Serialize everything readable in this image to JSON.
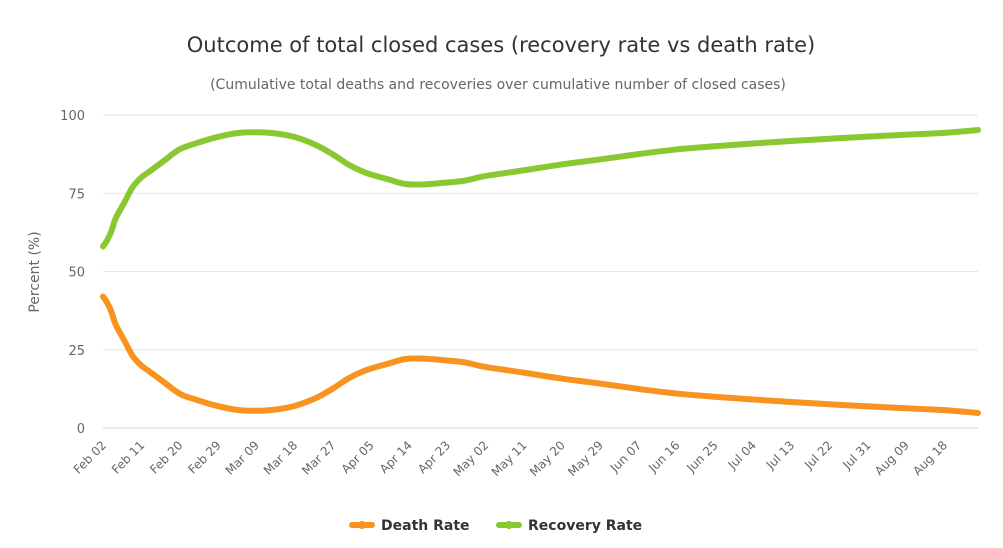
{
  "chart_data": {
    "type": "line",
    "title": "Outcome of total closed cases (recovery rate vs death rate)",
    "subtitle": "(Cumulative total deaths and recoveries over cumulative number of closed cases)",
    "xlabel": "",
    "ylabel": "Percent (%)",
    "ylim": [
      0,
      100
    ],
    "yticks": [
      "0",
      "25",
      "50",
      "75",
      "100"
    ],
    "ytick_values": [
      0,
      25,
      50,
      75,
      100
    ],
    "grid": true,
    "legend_position": "bottom-center",
    "x_unit": "days since Feb 02",
    "x_range": [
      0,
      206
    ],
    "xtick_labels": [
      "Feb 02",
      "Feb 11",
      "Feb 20",
      "Feb 29",
      "Mar 09",
      "Mar 18",
      "Mar 27",
      "Apr 05",
      "Apr 14",
      "Apr 23",
      "May 02",
      "May 11",
      "May 20",
      "May 29",
      "Jun 07",
      "Jun 16",
      "Jun 25",
      "Jul 04",
      "Jul 13",
      "Jul 22",
      "Jul 31",
      "Aug 09",
      "Aug 18"
    ],
    "xtick_days": [
      0,
      9,
      18,
      27,
      36,
      45,
      54,
      63,
      72,
      81,
      90,
      99,
      108,
      117,
      126,
      135,
      144,
      153,
      162,
      171,
      180,
      189,
      198
    ],
    "x": [
      0,
      1,
      2,
      3,
      5,
      7,
      9,
      11,
      14,
      18,
      22,
      27,
      32,
      36,
      40,
      45,
      50,
      54,
      58,
      62,
      67,
      71,
      75,
      80,
      85,
      90,
      99,
      108,
      117,
      126,
      135,
      144,
      153,
      162,
      171,
      180,
      189,
      198,
      206
    ],
    "series": [
      {
        "name": "Death Rate",
        "color": "#f7931e",
        "values": [
          42,
          40,
          37,
          33,
          28,
          23,
          20,
          18,
          15,
          11,
          9,
          7,
          5.7,
          5.5,
          5.8,
          7,
          9.5,
          12.5,
          16,
          18.5,
          20.5,
          22,
          22.2,
          21.7,
          21,
          19.5,
          17.7,
          15.8,
          14.2,
          12.5,
          11,
          10,
          9.1,
          8.3,
          7.6,
          6.9,
          6.3,
          5.7,
          4.8
        ]
      },
      {
        "name": "Recovery Rate",
        "color": "#8ac832",
        "values": [
          58,
          60,
          63,
          67,
          72,
          77,
          80,
          82,
          85,
          89,
          91,
          93,
          94.3,
          94.5,
          94.2,
          93,
          90.5,
          87.5,
          84,
          81.5,
          79.5,
          78,
          77.8,
          78.3,
          79,
          80.5,
          82.3,
          84.2,
          85.8,
          87.5,
          89,
          90,
          90.9,
          91.7,
          92.4,
          93.1,
          93.7,
          94.3,
          95.2
        ]
      }
    ]
  },
  "legend": {
    "items": [
      {
        "label": "Death Rate",
        "color": "#f7931e"
      },
      {
        "label": "Recovery Rate",
        "color": "#8ac832"
      }
    ]
  }
}
